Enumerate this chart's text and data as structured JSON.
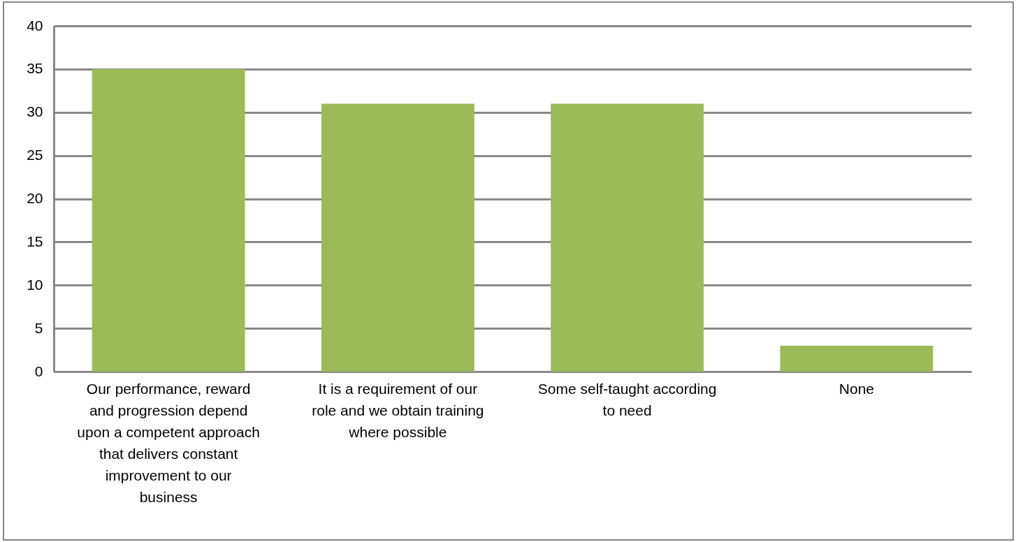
{
  "chart_data": {
    "type": "bar",
    "categories": [
      "Our performance, reward and progression depend upon a competent approach that delivers constant improvement to our business",
      "It is a requirement of our role and we obtain training where possible",
      "Some self-taught according to need",
      "None"
    ],
    "values": [
      35,
      31,
      31,
      3
    ],
    "color": "#9bbb59",
    "ylim": [
      0,
      40
    ],
    "yticks": [
      0,
      5,
      10,
      15,
      20,
      25,
      30,
      35,
      40
    ],
    "grid": "y"
  }
}
